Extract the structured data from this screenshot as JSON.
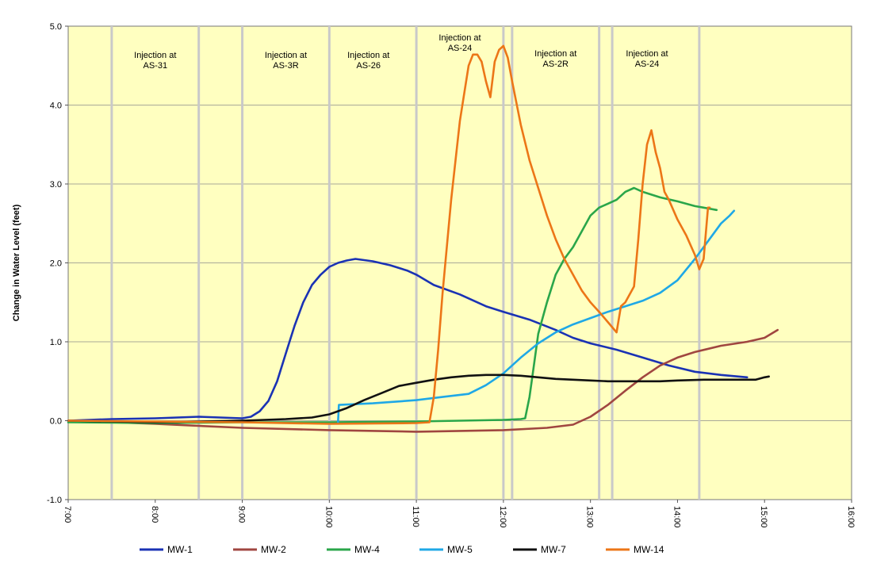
{
  "chart_data": {
    "type": "line",
    "title": "",
    "xlabel": "",
    "ylabel": "Change in Water Level (feet)",
    "xlim": [
      7,
      16
    ],
    "ylim": [
      -1,
      5
    ],
    "grid": true,
    "x_tick_labels": [
      "7:00",
      "8:00",
      "9:00",
      "10:00",
      "11:00",
      "12:00",
      "13:00",
      "14:00",
      "15:00",
      "16:00"
    ],
    "y_tick_labels": [
      "-1.0",
      "0.0",
      "1.0",
      "2.0",
      "3.0",
      "4.0",
      "5.0"
    ],
    "event_lines_hours": [
      7.5,
      8.5,
      9.0,
      10.0,
      11.0,
      12.0,
      12.1,
      13.1,
      13.25,
      14.25
    ],
    "annotations": [
      {
        "line1": "Injection at",
        "line2": "AS-31",
        "x": 8.0,
        "y": 4.6
      },
      {
        "line1": "Injection at",
        "line2": "AS-3R",
        "x": 9.5,
        "y": 4.6
      },
      {
        "line1": "Injection at",
        "line2": "AS-26",
        "x": 10.45,
        "y": 4.6
      },
      {
        "line1": "Injection at",
        "line2": "AS-24",
        "x": 11.5,
        "y": 4.82
      },
      {
        "line1": "Injection at",
        "line2": "AS-2R",
        "x": 12.6,
        "y": 4.62
      },
      {
        "line1": "Injection at",
        "line2": "AS-24",
        "x": 13.65,
        "y": 4.62
      }
    ],
    "series": [
      {
        "name": "MW-1",
        "color": "#1a32b4",
        "x": [
          7.0,
          7.5,
          8.0,
          8.5,
          9.0,
          9.1,
          9.2,
          9.3,
          9.4,
          9.5,
          9.6,
          9.7,
          9.8,
          9.9,
          10.0,
          10.1,
          10.2,
          10.3,
          10.5,
          10.7,
          10.9,
          11.0,
          11.2,
          11.5,
          11.8,
          12.0,
          12.3,
          12.6,
          12.8,
          13.0,
          13.3,
          13.6,
          13.9,
          14.2,
          14.5,
          14.8
        ],
        "y": [
          0.0,
          0.02,
          0.03,
          0.05,
          0.03,
          0.05,
          0.12,
          0.25,
          0.5,
          0.85,
          1.2,
          1.5,
          1.72,
          1.85,
          1.95,
          2.0,
          2.03,
          2.05,
          2.02,
          1.97,
          1.9,
          1.85,
          1.72,
          1.6,
          1.45,
          1.38,
          1.28,
          1.15,
          1.05,
          0.98,
          0.9,
          0.8,
          0.7,
          0.62,
          0.58,
          0.55
        ]
      },
      {
        "name": "MW-2",
        "color": "#a04640",
        "x": [
          7.0,
          8.0,
          9.0,
          10.0,
          11.0,
          12.0,
          12.5,
          12.8,
          13.0,
          13.2,
          13.4,
          13.6,
          13.8,
          14.0,
          14.2,
          14.5,
          14.8,
          15.0,
          15.15
        ],
        "y": [
          0.0,
          -0.04,
          -0.09,
          -0.12,
          -0.14,
          -0.12,
          -0.09,
          -0.05,
          0.05,
          0.2,
          0.38,
          0.55,
          0.7,
          0.8,
          0.87,
          0.95,
          1.0,
          1.05,
          1.15
        ]
      },
      {
        "name": "MW-4",
        "color": "#2aa64a",
        "x": [
          7.0,
          8.0,
          9.0,
          10.0,
          11.0,
          11.5,
          12.0,
          12.2,
          12.25,
          12.3,
          12.35,
          12.4,
          12.5,
          12.6,
          12.7,
          12.8,
          12.9,
          13.0,
          13.1,
          13.2,
          13.3,
          13.4,
          13.5,
          13.6,
          13.8,
          14.0,
          14.2,
          14.3,
          14.45
        ],
        "y": [
          -0.02,
          -0.03,
          -0.02,
          -0.02,
          -0.01,
          0.0,
          0.01,
          0.02,
          0.03,
          0.3,
          0.7,
          1.1,
          1.5,
          1.85,
          2.05,
          2.2,
          2.4,
          2.6,
          2.7,
          2.75,
          2.8,
          2.9,
          2.95,
          2.9,
          2.83,
          2.78,
          2.72,
          2.7,
          2.67
        ]
      },
      {
        "name": "MW-5",
        "color": "#1fa8e6",
        "x": [
          10.1,
          10.11,
          10.5,
          11.0,
          11.3,
          11.6,
          11.8,
          12.0,
          12.2,
          12.4,
          12.6,
          12.8,
          13.0,
          13.2,
          13.4,
          13.6,
          13.8,
          14.0,
          14.2,
          14.4,
          14.5,
          14.6,
          14.65
        ],
        "y": [
          -0.02,
          0.2,
          0.22,
          0.26,
          0.3,
          0.34,
          0.45,
          0.6,
          0.8,
          0.98,
          1.12,
          1.22,
          1.3,
          1.38,
          1.45,
          1.52,
          1.62,
          1.78,
          2.05,
          2.35,
          2.5,
          2.6,
          2.66
        ]
      },
      {
        "name": "MW-7",
        "color": "#111111",
        "x": [
          7.0,
          8.0,
          9.0,
          9.5,
          9.8,
          10.0,
          10.2,
          10.4,
          10.6,
          10.8,
          11.0,
          11.2,
          11.4,
          11.6,
          11.8,
          12.0,
          12.2,
          12.4,
          12.6,
          12.8,
          13.0,
          13.2,
          13.4,
          13.6,
          13.8,
          14.0,
          14.3,
          14.6,
          14.9,
          15.0,
          15.05
        ],
        "y": [
          0.0,
          -0.02,
          0.0,
          0.02,
          0.04,
          0.08,
          0.16,
          0.26,
          0.35,
          0.44,
          0.48,
          0.52,
          0.55,
          0.57,
          0.58,
          0.58,
          0.57,
          0.55,
          0.53,
          0.52,
          0.51,
          0.5,
          0.5,
          0.5,
          0.5,
          0.51,
          0.52,
          0.52,
          0.52,
          0.55,
          0.56
        ]
      },
      {
        "name": "MW-14",
        "color": "#ec7617",
        "x": [
          7.0,
          9.0,
          10.0,
          11.0,
          11.15,
          11.2,
          11.25,
          11.3,
          11.4,
          11.5,
          11.6,
          11.65,
          11.7,
          11.75,
          11.8,
          11.85,
          11.9,
          11.95,
          12.0,
          12.05,
          12.1,
          12.2,
          12.3,
          12.4,
          12.5,
          12.6,
          12.7,
          12.8,
          12.9,
          13.0,
          13.1,
          13.2,
          13.3,
          13.35,
          13.4,
          13.5,
          13.55,
          13.6,
          13.65,
          13.7,
          13.75,
          13.8,
          13.85,
          13.9,
          14.0,
          14.1,
          14.2,
          14.25,
          14.3,
          14.35,
          14.37
        ],
        "y": [
          0.0,
          -0.02,
          -0.04,
          -0.03,
          -0.02,
          0.3,
          0.9,
          1.6,
          2.8,
          3.8,
          4.5,
          4.64,
          4.64,
          4.55,
          4.3,
          4.1,
          4.55,
          4.7,
          4.75,
          4.6,
          4.3,
          3.75,
          3.3,
          2.95,
          2.6,
          2.3,
          2.05,
          1.85,
          1.65,
          1.5,
          1.38,
          1.25,
          1.12,
          1.45,
          1.5,
          1.7,
          2.3,
          3.0,
          3.5,
          3.68,
          3.4,
          3.2,
          2.9,
          2.8,
          2.55,
          2.35,
          2.1,
          1.92,
          2.05,
          2.7,
          2.7
        ]
      }
    ]
  }
}
